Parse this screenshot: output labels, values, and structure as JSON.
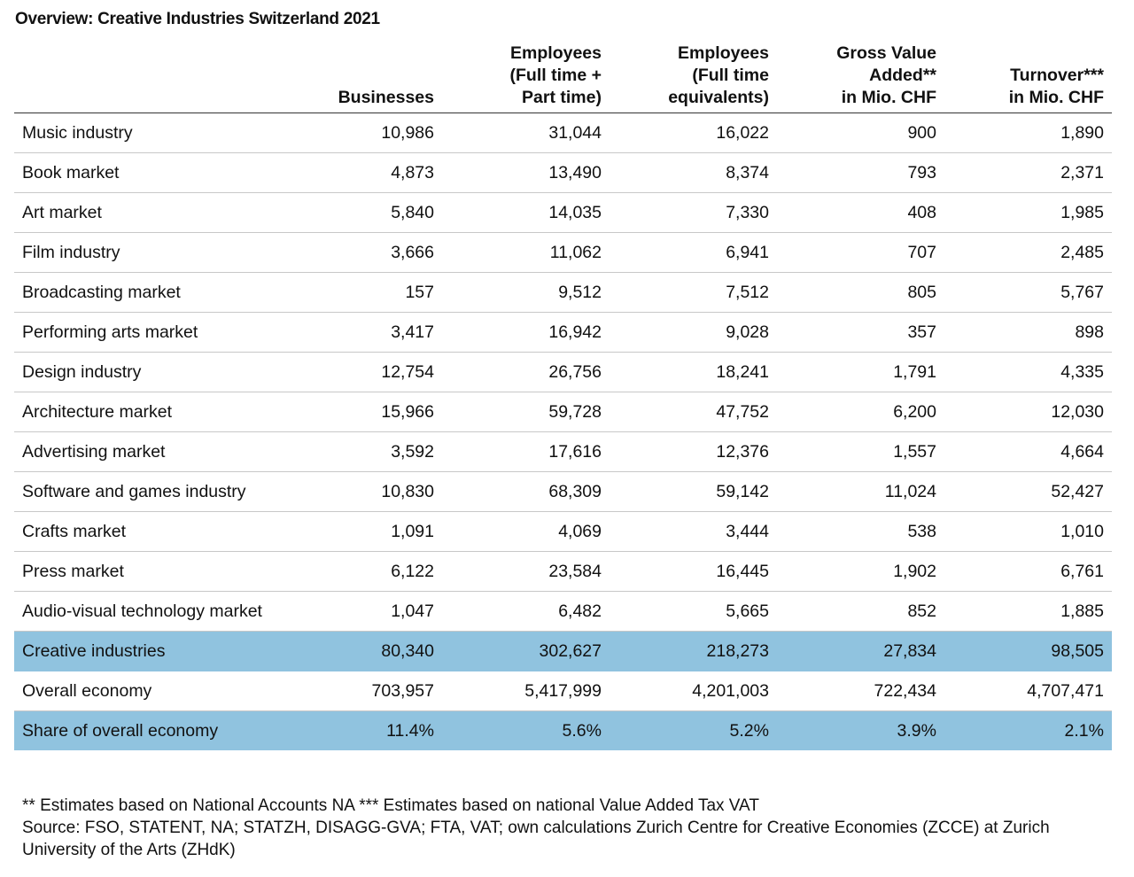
{
  "title": "Overview: Creative Industries Switzerland 2021",
  "table": {
    "headers": [
      "Businesses",
      "Employees\n(Full time +\nPart time)",
      "Employees\n(Full time\nequivalents)",
      "Gross Value\nAdded**\nin Mio. CHF",
      "Turnover***\nin Mio. CHF"
    ],
    "rows": [
      [
        "Music industry",
        "10,986",
        "31,044",
        "16,022",
        "900",
        "1,890"
      ],
      [
        "Book market",
        "4,873",
        "13,490",
        "8,374",
        "793",
        "2,371"
      ],
      [
        "Art market",
        "5,840",
        "14,035",
        "7,330",
        "408",
        "1,985"
      ],
      [
        "Film industry",
        "3,666",
        "11,062",
        "6,941",
        "707",
        "2,485"
      ],
      [
        "Broadcasting market",
        "157",
        "9,512",
        "7,512",
        "805",
        "5,767"
      ],
      [
        "Performing arts market",
        "3,417",
        "16,942",
        "9,028",
        "357",
        "898"
      ],
      [
        "Design industry",
        "12,754",
        "26,756",
        "18,241",
        "1,791",
        "4,335"
      ],
      [
        "Architecture market",
        "15,966",
        "59,728",
        "47,752",
        "6,200",
        "12,030"
      ],
      [
        "Advertising market",
        "3,592",
        "17,616",
        "12,376",
        "1,557",
        "4,664"
      ],
      [
        "Software and games industry",
        "10,830",
        "68,309",
        "59,142",
        "11,024",
        "52,427"
      ],
      [
        "Crafts market",
        "1,091",
        "4,069",
        "3,444",
        "538",
        "1,010"
      ],
      [
        "Press market",
        "6,122",
        "23,584",
        "16,445",
        "1,902",
        "6,761"
      ],
      [
        "Audio-visual technology market",
        "1,047",
        "6,482",
        "5,665",
        "852",
        "1,885"
      ],
      [
        "Creative industries",
        "80,340",
        "302,627",
        "218,273",
        "27,834",
        "98,505"
      ],
      [
        "Overall economy",
        "703,957",
        "5,417,999",
        "4,201,003",
        "722,434",
        "4,707,471"
      ],
      [
        "Share of overall economy",
        "11.4%",
        "5.6%",
        "5.2%",
        "3.9%",
        "2.1%"
      ]
    ],
    "highlighted_rows": [
      13,
      15
    ]
  },
  "footnotes": [
    "** Estimates based on National Accounts NA *** Estimates based on national Value Added Tax VAT",
    "Source: FSO, STATENT, NA; STATZH, DISAGG-GVA; FTA, VAT; own calculations Zurich Centre for Creative Economies (ZCCE) at Zurich University of the Arts (ZHdK)"
  ]
}
